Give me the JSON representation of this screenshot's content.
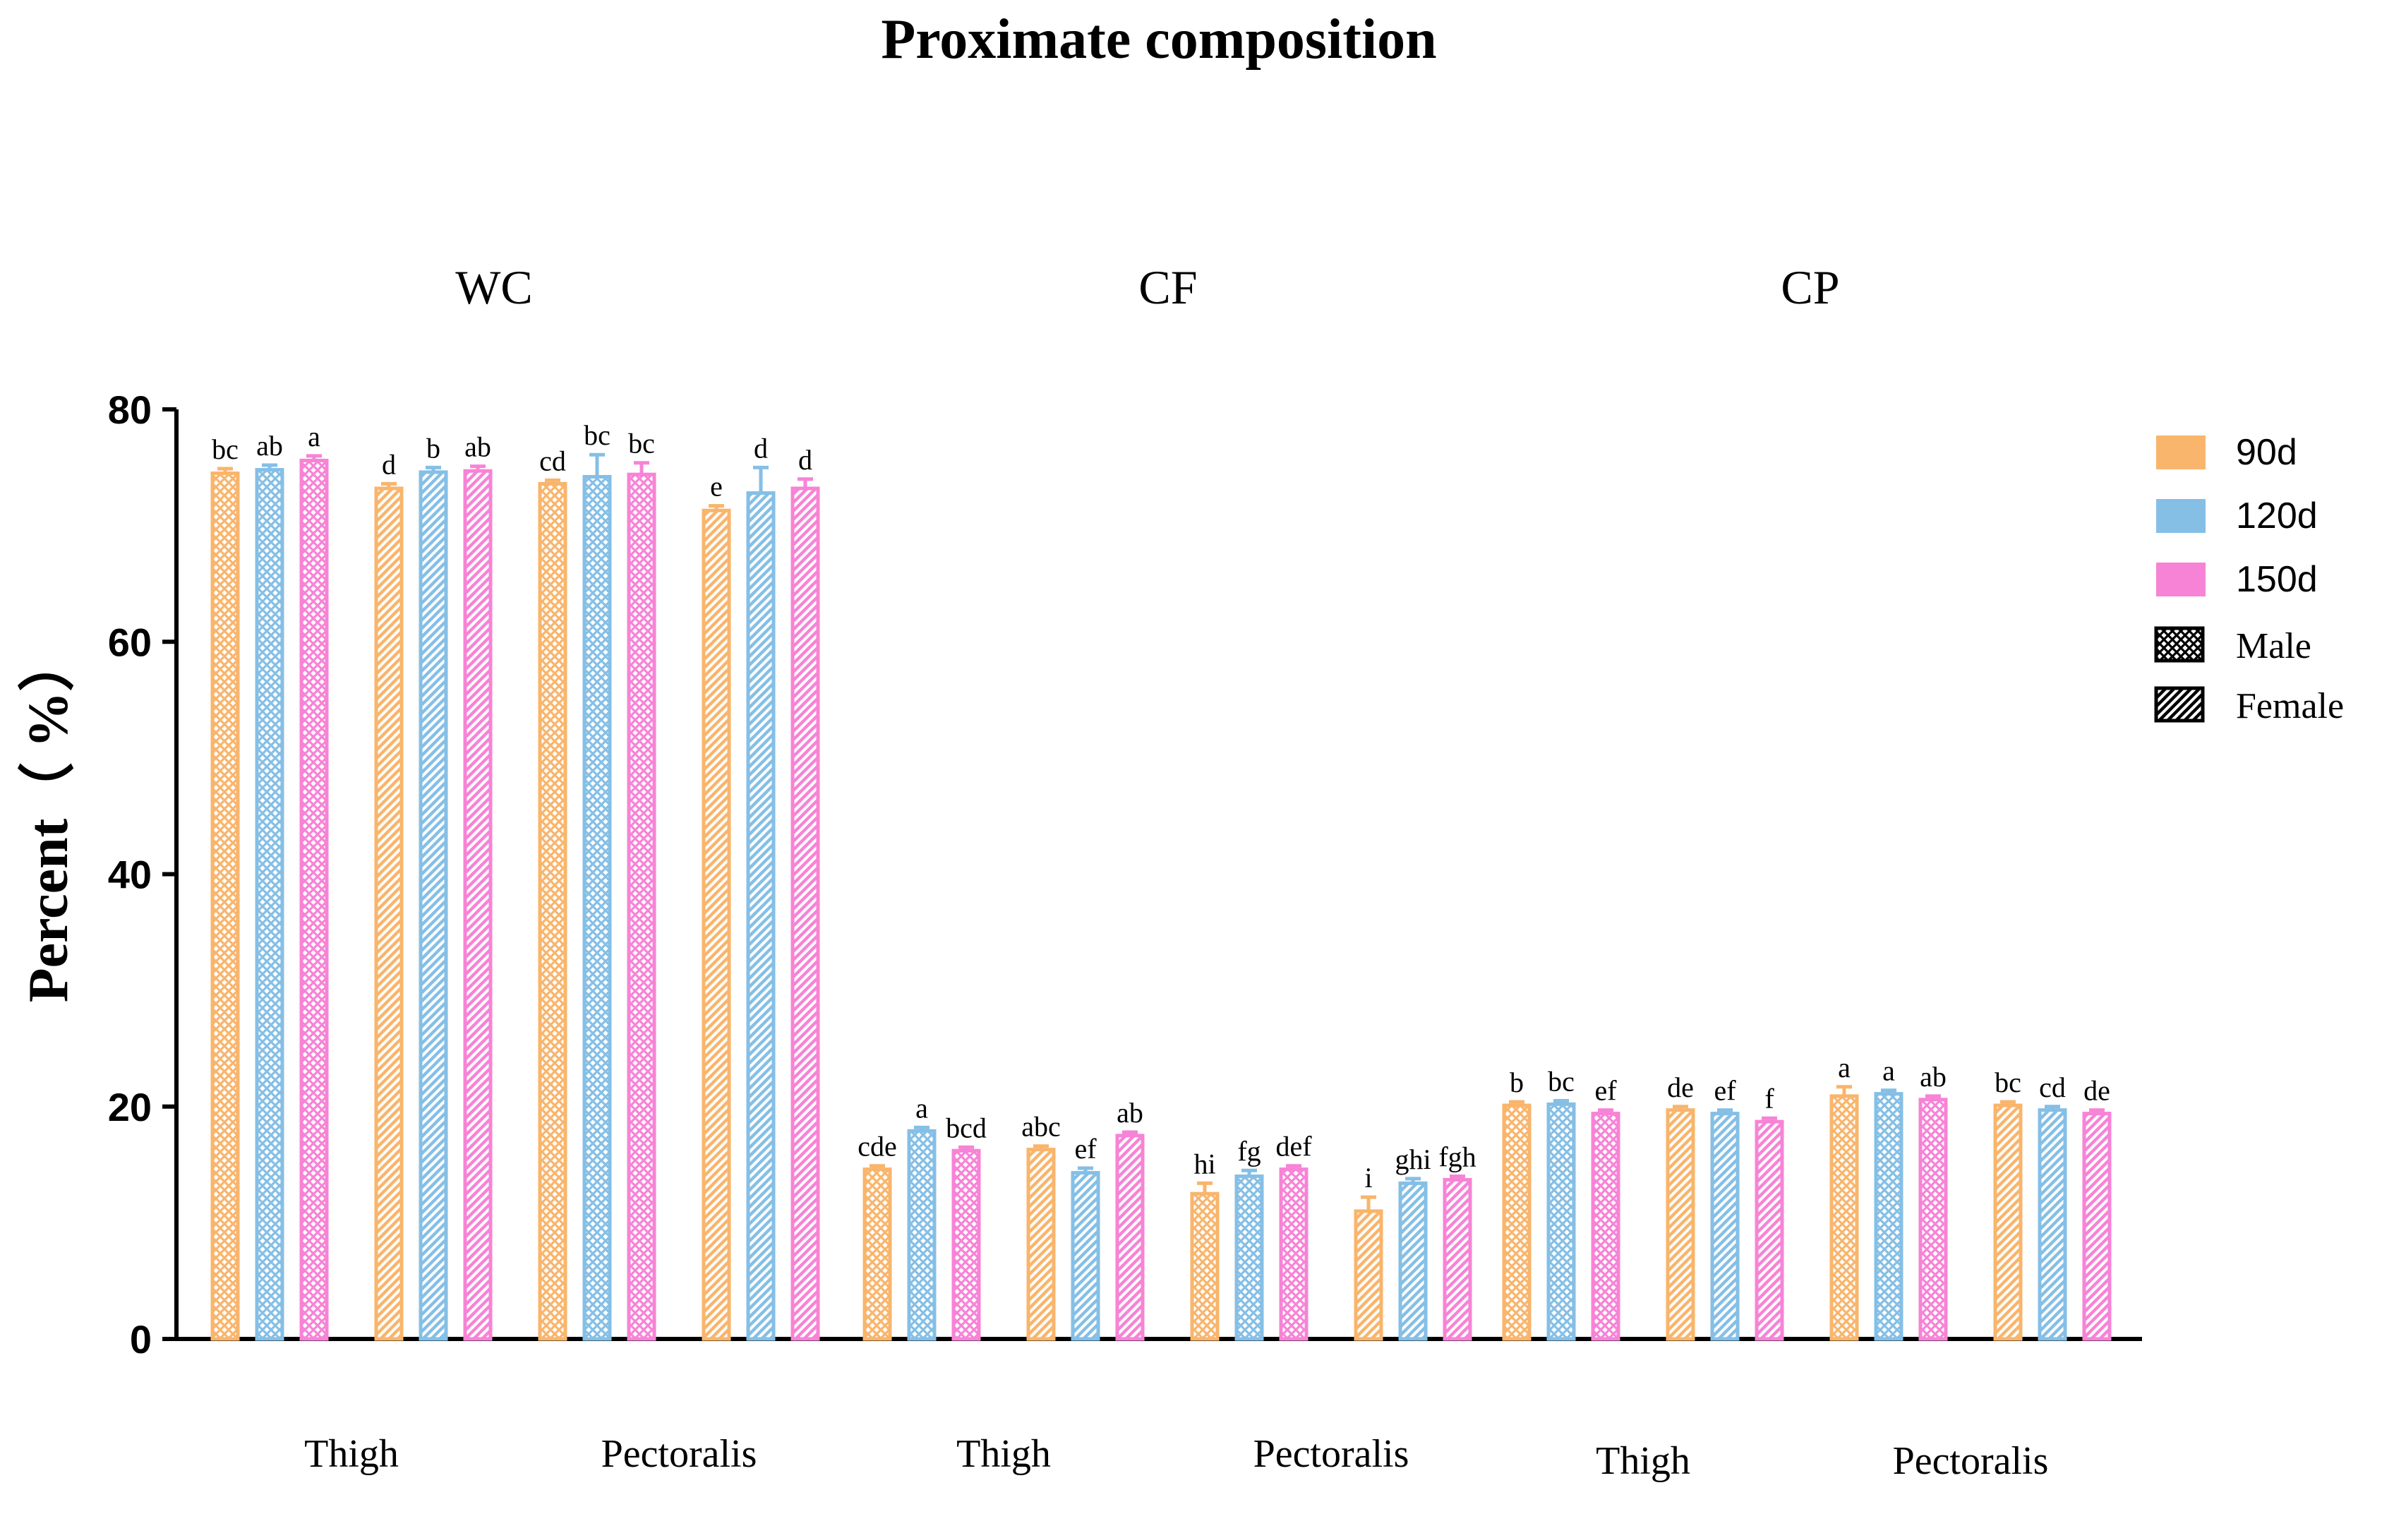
{
  "chart_data": {
    "type": "bar",
    "title": "Proximate composition",
    "ylabel": "Percent（ %）",
    "ylim": [
      0,
      80
    ],
    "yticks": [
      0,
      20,
      40,
      60,
      80
    ],
    "series_names": [
      "90d",
      "120d",
      "150d"
    ],
    "colors": {
      "90d": "#F9B56C",
      "120d": "#85BFE6",
      "150d": "#F783D6"
    },
    "sex_legend": [
      {
        "label": "Male",
        "pattern": "crosshatch"
      },
      {
        "label": "Female",
        "pattern": "diagonal"
      }
    ],
    "groups": [
      {
        "name": "WC",
        "clusters": [
          {
            "muscle": "Thigh",
            "sex": "Male",
            "values": [
              74.5,
              74.8,
              75.6
            ],
            "errors": [
              0.4,
              0.4,
              0.4
            ],
            "letters": [
              "bc",
              "ab",
              "a"
            ]
          },
          {
            "muscle": "Thigh",
            "sex": "Female",
            "values": [
              73.2,
              74.6,
              74.7
            ],
            "errors": [
              0.4,
              0.4,
              0.4
            ],
            "letters": [
              "d",
              "b",
              "ab"
            ]
          },
          {
            "muscle": "Pectoralis",
            "sex": "Male",
            "values": [
              73.6,
              74.2,
              74.4
            ],
            "errors": [
              0.3,
              1.9,
              1.0
            ],
            "letters": [
              "cd",
              "bc",
              "bc"
            ]
          },
          {
            "muscle": "Pectoralis",
            "sex": "Female",
            "values": [
              71.3,
              72.8,
              73.2
            ],
            "errors": [
              0.4,
              2.2,
              0.8
            ],
            "letters": [
              "e",
              "d",
              "d"
            ]
          }
        ],
        "category_labels": [
          "Thigh",
          "Pectoralis"
        ]
      },
      {
        "name": "CF",
        "clusters": [
          {
            "muscle": "Thigh",
            "sex": "Male",
            "values": [
              14.6,
              17.9,
              16.2
            ],
            "errors": [
              0.3,
              0.3,
              0.3
            ],
            "letters": [
              "cde",
              "a",
              "bcd"
            ]
          },
          {
            "muscle": "Thigh",
            "sex": "Female",
            "values": [
              16.3,
              14.3,
              17.5
            ],
            "errors": [
              0.3,
              0.4,
              0.3
            ],
            "letters": [
              "abc",
              "ef",
              "ab"
            ]
          },
          {
            "muscle": "Pectoralis",
            "sex": "Male",
            "values": [
              12.5,
              14.0,
              14.6
            ],
            "errors": [
              0.9,
              0.5,
              0.3
            ],
            "letters": [
              "hi",
              "fg",
              "def"
            ]
          },
          {
            "muscle": "Pectoralis",
            "sex": "Female",
            "values": [
              11.0,
              13.4,
              13.7
            ],
            "errors": [
              1.2,
              0.4,
              0.3
            ],
            "letters": [
              "i",
              "ghi",
              "fgh"
            ]
          }
        ],
        "category_labels": [
          "Thigh",
          "Pectoralis"
        ]
      },
      {
        "name": "CP",
        "clusters": [
          {
            "muscle": "Thigh",
            "sex": "Male",
            "values": [
              20.1,
              20.2,
              19.4
            ],
            "errors": [
              0.3,
              0.3,
              0.3
            ],
            "letters": [
              "b",
              "bc",
              "ef"
            ]
          },
          {
            "muscle": "Thigh",
            "sex": "Female",
            "values": [
              19.7,
              19.4,
              18.7
            ],
            "errors": [
              0.3,
              0.3,
              0.3
            ],
            "letters": [
              "de",
              "ef",
              "f"
            ]
          },
          {
            "muscle": "Pectoralis",
            "sex": "Male",
            "values": [
              20.9,
              21.1,
              20.6
            ],
            "errors": [
              0.8,
              0.3,
              0.3
            ],
            "letters": [
              "a",
              "a",
              "ab"
            ]
          },
          {
            "muscle": "Pectoralis",
            "sex": "Female",
            "values": [
              20.1,
              19.7,
              19.4
            ],
            "errors": [
              0.3,
              0.3,
              0.3
            ],
            "letters": [
              "bc",
              "cd",
              "de"
            ]
          }
        ],
        "category_labels": [
          "Thigh",
          "Pectoralis"
        ]
      }
    ]
  }
}
